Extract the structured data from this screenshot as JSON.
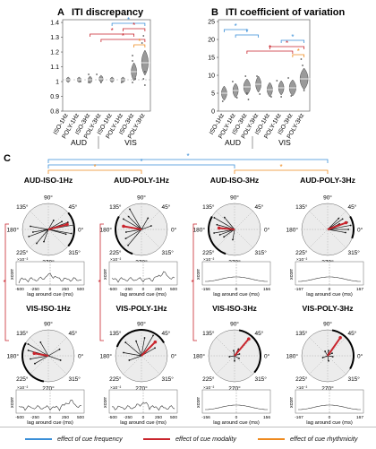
{
  "colors": {
    "frequency": "#3a8fd8",
    "modality": "#c9252d",
    "rhythmicity": "#ee8a1e"
  },
  "panelA": {
    "letter": "A",
    "title": "ITI discrepancy",
    "y_ticks": [
      "0.8",
      "0.9",
      "1",
      "1.1",
      "1.2",
      "1.3",
      "1.4"
    ],
    "conditions": [
      "ISO-1Hz",
      "POLY-1Hz",
      "ISO-3Hz",
      "POLY-3Hz",
      "ISO-1Hz",
      "POLY-1Hz",
      "ISO-3Hz",
      "POLY-3Hz"
    ],
    "group_labels": [
      "AUD",
      "VIS"
    ]
  },
  "panelB": {
    "letter": "B",
    "title": "ITI coefficient of variation",
    "y_ticks": [
      "0",
      "5",
      "10",
      "15",
      "20",
      "25"
    ],
    "conditions": [
      "ISO-1Hz",
      "POLY-1Hz",
      "ISO-3Hz",
      "POLY-3Hz",
      "ISO-1Hz",
      "POLY-1Hz",
      "ISO-3Hz",
      "POLY-3Hz"
    ],
    "group_labels": [
      "AUD",
      "VIS"
    ]
  },
  "panelC": {
    "letter": "C",
    "polar_titles": [
      "AUD-ISO-1Hz",
      "AUD-POLY-1Hz",
      "AUD-ISO-3Hz",
      "AUD-POLY-3Hz",
      "VIS-ISO-1Hz",
      "VIS-POLY-1Hz",
      "VIS-ISO-3Hz",
      "VIS-POLY-3Hz"
    ],
    "angle_labels": [
      "90°",
      "45°",
      "0°",
      "315°",
      "270°",
      "225°",
      "180°",
      "135°"
    ],
    "xcorr_label": "xcorr",
    "lag_label": "lag around cue (ms)",
    "scale_label": "×10⁻²",
    "xcorr_ticks_1hz": [
      "-500",
      "-250",
      "0",
      "250",
      "500"
    ],
    "xcorr_ticks_iso3": [
      "-156",
      "0",
      "156"
    ],
    "xcorr_ticks_poly3": [
      "-167",
      "0",
      "167"
    ]
  },
  "sig_marker": "*",
  "legend": {
    "frequency": "effect of cue frequency",
    "modality": "effect of cue modality",
    "rhythmicity": "effect of cue rhythmicity"
  }
}
